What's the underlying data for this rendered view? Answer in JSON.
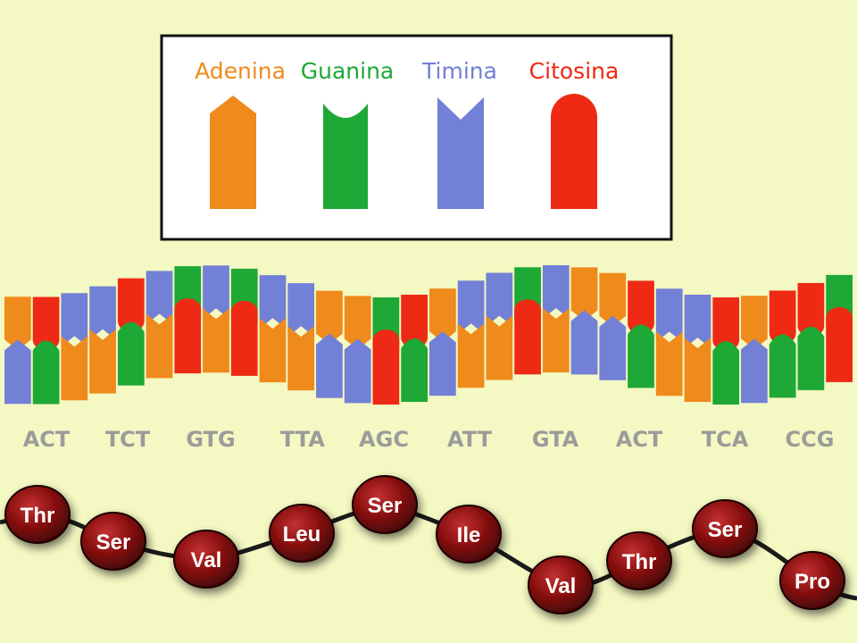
{
  "colors": {
    "background": "#f4f8c2",
    "A": "#ef8a1c",
    "G": "#1ea836",
    "T": "#7280d6",
    "C": "#ee2a14",
    "codon_text": "#9b9b9b",
    "bead": "#8a1010",
    "chain": "#1a1a1a"
  },
  "legend": {
    "items": [
      {
        "base": "A",
        "label": "Adenina",
        "shape": "adenine-arrow-shape"
      },
      {
        "base": "G",
        "label": "Guanina",
        "shape": "guanine-notch-shape"
      },
      {
        "base": "T",
        "label": "Timina",
        "shape": "thymine-vnotch-shape"
      },
      {
        "base": "C",
        "label": "Citosina",
        "shape": "cytosine-round-shape"
      }
    ]
  },
  "dna": {
    "sequence": "ACTTCTGTGTTAAGCATTGTAACTTCACCG"
  },
  "codons": [
    "ACT",
    "TCT",
    "GTG",
    "TTA",
    "AGC",
    "ATT",
    "GTA",
    "ACT",
    "TCA",
    "CCG"
  ],
  "amino_acids": [
    "Thr",
    "Ser",
    "Val",
    "Leu",
    "Ser",
    "Ile",
    "Val",
    "Thr",
    "Ser",
    "Pro"
  ]
}
